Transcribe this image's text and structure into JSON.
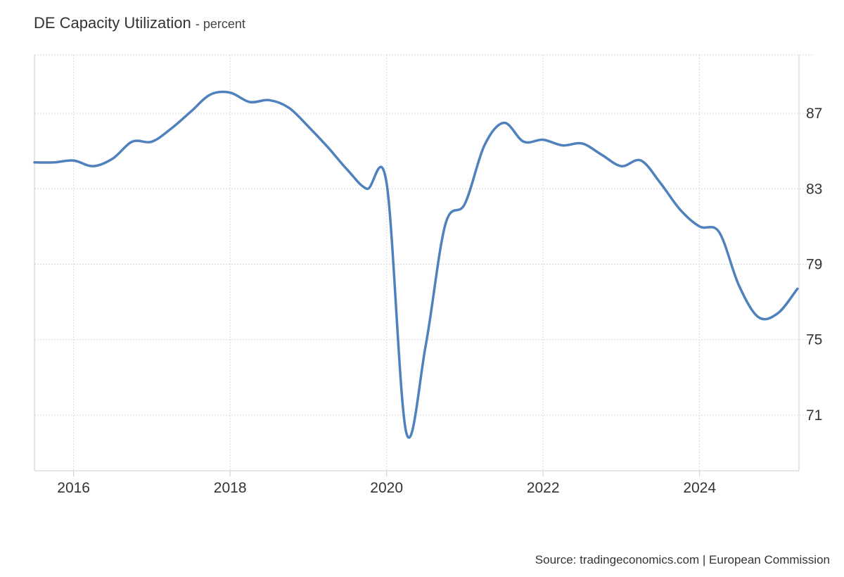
{
  "header": {
    "title": "DE Capacity Utilization",
    "unit": "- percent"
  },
  "source": "Source: tradingeconomics.com | European Commission",
  "colors": {
    "line": "#4f81bd",
    "grid": "#d9d9d9"
  },
  "chart_data": {
    "type": "line",
    "title": "DE Capacity Utilization",
    "ylabel": "percent",
    "xlabel": "",
    "xlim": [
      2015.5,
      2025.27
    ],
    "ylim": [
      68.05,
      90.1
    ],
    "x_ticks": [
      2016,
      2018,
      2020,
      2022,
      2024
    ],
    "x_tick_labels": [
      "2016",
      "2018",
      "2020",
      "2022",
      "2024"
    ],
    "y_ticks": [
      71,
      75,
      79,
      83,
      87
    ],
    "y_tick_labels": [
      "71",
      "75",
      "79",
      "83",
      "87"
    ],
    "grid": true,
    "series": [
      {
        "name": "DE Capacity Utilization",
        "x": [
          2015.5,
          2015.75,
          2016.0,
          2016.25,
          2016.5,
          2016.75,
          2017.0,
          2017.25,
          2017.5,
          2017.75,
          2018.0,
          2018.25,
          2018.5,
          2018.75,
          2019.0,
          2019.25,
          2019.5,
          2019.75,
          2020.0,
          2020.25,
          2020.5,
          2020.75,
          2021.0,
          2021.25,
          2021.5,
          2021.75,
          2022.0,
          2022.25,
          2022.5,
          2022.75,
          2023.0,
          2023.25,
          2023.5,
          2023.75,
          2024.0,
          2024.25,
          2024.5,
          2024.75,
          2025.0,
          2025.25
        ],
        "values": [
          84.4,
          84.4,
          84.5,
          84.2,
          84.6,
          85.5,
          85.5,
          86.2,
          87.1,
          88.0,
          88.1,
          87.6,
          87.7,
          87.3,
          86.3,
          85.2,
          84.0,
          83.0,
          83.3,
          70.1,
          74.7,
          81.1,
          82.2,
          85.3,
          86.5,
          85.5,
          85.6,
          85.3,
          85.4,
          84.8,
          84.2,
          84.5,
          83.3,
          81.9,
          81.0,
          80.7,
          77.9,
          76.2,
          76.4,
          77.7
        ]
      }
    ]
  }
}
